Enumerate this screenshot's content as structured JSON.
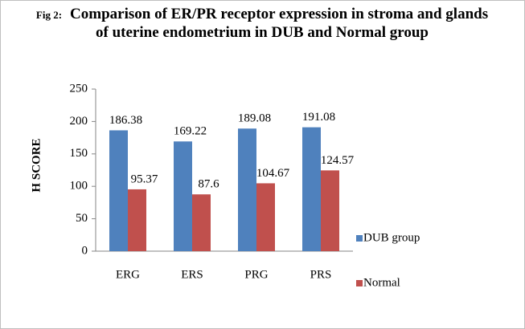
{
  "chart_data": {
    "type": "bar",
    "figure_label": "Fig 2:",
    "title": "Comparison of ER/PR receptor expression in stroma and glands of uterine endometrium in DUB and Normal group",
    "y_label": "H SCORE",
    "categories": [
      "ERG",
      "ERS",
      "PRG",
      "PRS"
    ],
    "series": [
      {
        "name": "DUB group",
        "color": "#4f81bd",
        "values": [
          186.38,
          169.22,
          189.08,
          191.08
        ]
      },
      {
        "name": "Normal",
        "color": "#c0504d",
        "values": [
          95.37,
          87.6,
          104.67,
          124.57
        ]
      }
    ],
    "ylim": [
      0,
      250
    ],
    "yticks": [
      0,
      50,
      100,
      150,
      200,
      250
    ],
    "grid": false,
    "legend": "right"
  }
}
